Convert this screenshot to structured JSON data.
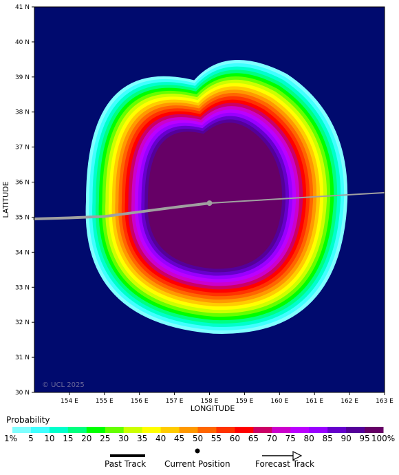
{
  "map": {
    "latitude_label": "LATITUDE",
    "longitude_label": "LONGITUDE",
    "lat_ticks": [
      "30 N",
      "31 N",
      "32 N",
      "33 N",
      "34 N",
      "35 N",
      "36 N",
      "37 N",
      "38 N",
      "39 N",
      "40 N",
      "41 N"
    ],
    "lon_ticks": [
      "154 E",
      "155 E",
      "156 E",
      "157 E",
      "158 E",
      "159 E",
      "160 E",
      "161 E",
      "162 E",
      "163 E"
    ],
    "lon_range": [
      153,
      163
    ],
    "lat_range": [
      30,
      41
    ],
    "background_color": "#000a6e",
    "copyright": "© UCL 2025",
    "current_position": {
      "lon": 158.0,
      "lat": 35.4
    },
    "past_track": [
      [
        153.0,
        34.95
      ],
      [
        154.0,
        34.98
      ],
      [
        155.0,
        35.02
      ],
      [
        156.0,
        35.15
      ],
      [
        157.0,
        35.28
      ],
      [
        158.0,
        35.4
      ]
    ],
    "forecast_track": [
      [
        158.0,
        35.4
      ],
      [
        159.0,
        35.46
      ],
      [
        160.0,
        35.52
      ],
      [
        161.0,
        35.58
      ],
      [
        162.0,
        35.64
      ],
      [
        163.0,
        35.7
      ]
    ]
  },
  "legend": {
    "title": "Probability",
    "levels": [
      "1%",
      "5",
      "10",
      "15",
      "20",
      "25",
      "30",
      "35",
      "40",
      "45",
      "50",
      "55",
      "60",
      "65",
      "70",
      "75",
      "80",
      "85",
      "90",
      "95",
      "100%"
    ],
    "colors": [
      "#80ffff",
      "#40ffff",
      "#00ffcc",
      "#00ff80",
      "#00ff00",
      "#66ff00",
      "#ccff00",
      "#ffff00",
      "#ffcc00",
      "#ff9900",
      "#ff6600",
      "#ff3300",
      "#ff0000",
      "#cc0066",
      "#cc00cc",
      "#bb00ff",
      "#9900ff",
      "#6600cc",
      "#550099",
      "#660066"
    ],
    "past_track_label": "Past Track",
    "current_position_label": "Current Position",
    "forecast_track_label": "Forecast Track"
  }
}
